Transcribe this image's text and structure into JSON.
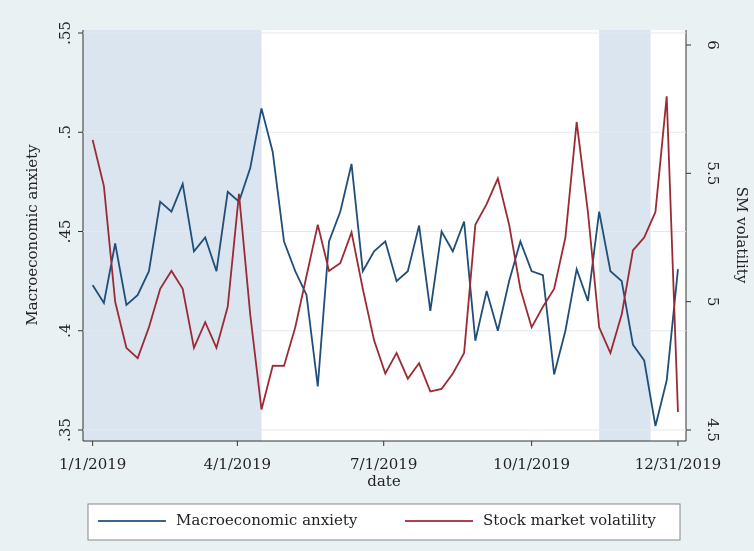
{
  "chart_data": {
    "type": "line",
    "x": [
      "2019-01-01",
      "2019-01-08",
      "2019-01-15",
      "2019-01-22",
      "2019-01-29",
      "2019-02-05",
      "2019-02-12",
      "2019-02-19",
      "2019-02-26",
      "2019-03-05",
      "2019-03-12",
      "2019-03-19",
      "2019-03-26",
      "2019-04-02",
      "2019-04-09",
      "2019-04-16",
      "2019-04-23",
      "2019-04-30",
      "2019-05-07",
      "2019-05-14",
      "2019-05-21",
      "2019-05-28",
      "2019-06-04",
      "2019-06-11",
      "2019-06-18",
      "2019-06-25",
      "2019-07-02",
      "2019-07-09",
      "2019-07-16",
      "2019-07-23",
      "2019-07-30",
      "2019-08-06",
      "2019-08-13",
      "2019-08-20",
      "2019-08-27",
      "2019-09-03",
      "2019-09-10",
      "2019-09-17",
      "2019-09-24",
      "2019-10-01",
      "2019-10-08",
      "2019-10-15",
      "2019-10-22",
      "2019-10-29",
      "2019-11-05",
      "2019-11-12",
      "2019-11-19",
      "2019-11-26",
      "2019-12-03",
      "2019-12-10",
      "2019-12-17",
      "2019-12-24",
      "2019-12-31"
    ],
    "series": [
      {
        "name": "Macroeconomic anxiety",
        "color": "#1f4e79",
        "values": [
          0.423,
          0.414,
          0.444,
          0.413,
          0.418,
          0.43,
          0.465,
          0.46,
          0.474,
          0.44,
          0.447,
          0.43,
          0.47,
          0.465,
          0.482,
          0.512,
          0.49,
          0.445,
          0.43,
          0.418,
          0.372,
          0.445,
          0.46,
          0.484,
          0.43,
          0.44,
          0.445,
          0.425,
          0.43,
          0.453,
          0.41,
          0.45,
          0.44,
          0.455,
          0.395,
          0.42,
          0.4,
          0.425,
          0.445,
          0.43,
          0.428,
          0.378,
          0.4,
          0.431,
          0.415,
          0.46,
          0.43,
          0.425,
          0.393,
          0.385,
          0.352,
          0.375,
          0.431
        ]
      },
      {
        "name": "Stock market volatility",
        "color": "#9b2a35",
        "axis": "y2",
        "values": [
          5.63,
          5.45,
          5.0,
          4.82,
          4.78,
          4.9,
          5.05,
          5.12,
          5.05,
          4.82,
          4.92,
          4.82,
          4.98,
          5.42,
          4.95,
          4.58,
          4.75,
          4.75,
          4.9,
          5.1,
          5.3,
          5.12,
          5.15,
          5.27,
          5.05,
          4.85,
          4.72,
          4.8,
          4.7,
          4.76,
          4.65,
          4.66,
          4.72,
          4.8,
          5.3,
          5.38,
          5.48,
          5.3,
          5.05,
          4.9,
          4.98,
          5.05,
          5.25,
          5.7,
          5.35,
          4.9,
          4.8,
          4.95,
          5.2,
          5.25,
          5.35,
          5.8,
          4.57
        ]
      }
    ],
    "shaded_periods": [
      [
        "2018-12-26",
        "2019-04-16"
      ],
      [
        "2019-11-12",
        "2019-12-14"
      ]
    ],
    "xlim": [
      "2018-12-26",
      "2020-01-05"
    ],
    "xticks": [
      {
        "value": "2019-01-01",
        "label": "1/1/2019"
      },
      {
        "value": "2019-04-01",
        "label": "4/1/2019"
      },
      {
        "value": "2019-07-01",
        "label": "7/1/2019"
      },
      {
        "value": "2019-10-01",
        "label": "10/1/2019"
      },
      {
        "value": "2019-12-31",
        "label": "12/31/2019"
      }
    ],
    "xlabel": "date",
    "ylabel": "Macroeconomic anxiety",
    "ylim": [
      0.35,
      0.55
    ],
    "yticks": [
      {
        "value": 0.35,
        "label": ".35"
      },
      {
        "value": 0.4,
        "label": ".4"
      },
      {
        "value": 0.45,
        "label": ".45"
      },
      {
        "value": 0.5,
        "label": ".5"
      },
      {
        "value": 0.55,
        "label": ".55"
      }
    ],
    "y2label": "SM volatility",
    "y2lim": [
      4.5,
      6
    ],
    "y2ticks": [
      4.5,
      5,
      5.5,
      6
    ],
    "grid": true,
    "legend": "bottom"
  }
}
